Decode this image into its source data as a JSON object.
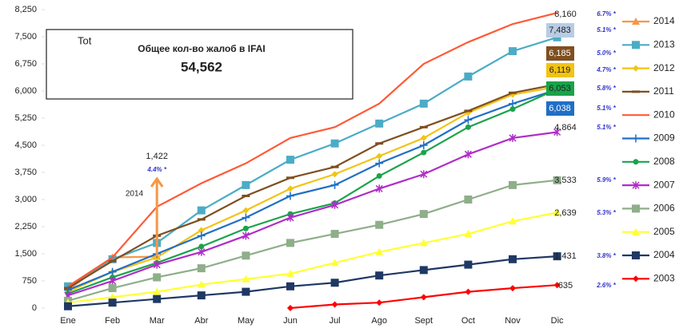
{
  "chart_data": {
    "type": "line",
    "categories": [
      "Ene",
      "Feb",
      "Mar",
      "Abr",
      "May",
      "Jun",
      "Jul",
      "Ago",
      "Sept",
      "Oct",
      "Nov",
      "Dic"
    ],
    "ylim": [
      0,
      8250
    ],
    "yticks": [
      0,
      750,
      {
        "value": 1500,
        "label": "1,500"
      },
      {
        "value": 2250,
        "label": "2,250"
      },
      {
        "value": 3000,
        "label": "3,000"
      },
      {
        "value": 3750,
        "label": "3,750"
      },
      {
        "value": 4500,
        "label": "4,500"
      },
      {
        "value": 5250,
        "label": "5,250"
      },
      {
        "value": 6000,
        "label": "6,000"
      },
      {
        "value": 6750,
        "label": "6,750"
      },
      {
        "value": 7500,
        "label": "7,500"
      },
      {
        "value": 8250,
        "label": "8,250"
      }
    ],
    "box": {
      "partial": "Tot",
      "title": "Общее кол-во жалоб в IFAI",
      "total": "54,562"
    },
    "annotation": "2014",
    "series": [
      {
        "name": "2014",
        "color": "#f79646",
        "marker": "triangle",
        "values": [
          500,
          1400,
          1422,
          null,
          null,
          null,
          null,
          null,
          null,
          null,
          null,
          null
        ],
        "value_labels": [
          null,
          null,
          "1,422",
          null,
          null,
          null,
          null,
          null,
          null,
          null,
          null,
          null
        ],
        "growth": "4.4% *"
      },
      {
        "name": "2013",
        "color": "#4bacc6",
        "marker": "square",
        "values": [
          600,
          1350,
          1800,
          2700,
          3400,
          4100,
          4550,
          5100,
          5650,
          6400,
          7100,
          7483
        ],
        "value_labels": [
          null,
          null,
          null,
          null,
          null,
          null,
          null,
          null,
          null,
          null,
          null,
          "7,483"
        ],
        "label_box": "#b8cce4",
        "growth": "5.1% *"
      },
      {
        "name": "2012",
        "color": "#f2c314",
        "marker": "diamond",
        "values": [
          450,
          1000,
          1400,
          2150,
          2700,
          3300,
          3700,
          4200,
          4700,
          5400,
          5900,
          6119
        ],
        "value_labels": [
          null,
          null,
          null,
          null,
          null,
          null,
          null,
          null,
          null,
          null,
          null,
          "6,119"
        ],
        "label_box": "#f2c314",
        "growth": "4.7% *"
      },
      {
        "name": "2011",
        "color": "#7f4f1f",
        "marker": "dash",
        "values": [
          550,
          1300,
          2000,
          2450,
          3100,
          3600,
          3900,
          4550,
          5000,
          5450,
          5950,
          6185
        ],
        "value_labels": [
          null,
          null,
          null,
          null,
          null,
          null,
          null,
          null,
          null,
          null,
          null,
          "6,185"
        ],
        "label_box": "#7f4f1f",
        "growth": "5.0% *"
      },
      {
        "name": "2010",
        "color": "#ff5a36",
        "marker": "none",
        "values": [
          600,
          1400,
          2800,
          3450,
          4000,
          4700,
          5000,
          5650,
          6750,
          7350,
          7850,
          8160
        ],
        "value_labels": [
          null,
          null,
          null,
          null,
          null,
          null,
          null,
          null,
          null,
          null,
          null,
          "8,160"
        ],
        "growth": "6.7% *"
      },
      {
        "name": "2009",
        "color": "#1f6fc6",
        "marker": "plus",
        "values": [
          500,
          1000,
          1500,
          2000,
          2500,
          3100,
          3400,
          4000,
          4500,
          5200,
          5650,
          6038
        ],
        "value_labels": [
          null,
          null,
          null,
          null,
          null,
          null,
          null,
          null,
          null,
          null,
          null,
          "6,038"
        ],
        "label_box": "#1f6fc6",
        "growth": "5.1% *"
      },
      {
        "name": "2008",
        "color": "#1aa34a",
        "marker": "circle",
        "values": [
          400,
          850,
          1250,
          1700,
          2200,
          2600,
          2900,
          3650,
          4300,
          5000,
          5500,
          6053
        ],
        "value_labels": [
          null,
          null,
          null,
          null,
          null,
          null,
          null,
          null,
          null,
          null,
          null,
          "6,053"
        ],
        "label_box": "#1aa34a",
        "growth": "5.8% *"
      },
      {
        "name": "2007",
        "color": "#b02cc9",
        "marker": "star",
        "values": [
          350,
          750,
          1200,
          1550,
          2000,
          2500,
          2850,
          3300,
          3700,
          4250,
          4700,
          4864
        ],
        "value_labels": [
          null,
          null,
          null,
          null,
          null,
          null,
          null,
          null,
          null,
          null,
          null,
          "4,864"
        ],
        "growth": "5.1% *"
      },
      {
        "name": "2006",
        "color": "#8fae8a",
        "marker": "square",
        "values": [
          200,
          550,
          850,
          1100,
          1450,
          1800,
          2050,
          2300,
          2600,
          3000,
          3400,
          3533
        ],
        "value_labels": [
          null,
          null,
          null,
          null,
          null,
          null,
          null,
          null,
          null,
          null,
          null,
          "3,533"
        ],
        "growth": "5.9% *"
      },
      {
        "name": "2005",
        "color": "#ffff33",
        "marker": "triangle",
        "values": [
          150,
          300,
          450,
          650,
          800,
          950,
          1250,
          1550,
          1800,
          2050,
          2400,
          2639
        ],
        "value_labels": [
          null,
          null,
          null,
          null,
          null,
          null,
          null,
          null,
          null,
          null,
          null,
          "2,639"
        ],
        "growth": "5.3% *"
      },
      {
        "name": "2004",
        "color": "#1f3864",
        "marker": "square",
        "values": [
          50,
          150,
          250,
          350,
          450,
          600,
          700,
          900,
          1050,
          1200,
          1350,
          1431
        ],
        "value_labels": [
          null,
          null,
          null,
          null,
          null,
          null,
          null,
          null,
          null,
          null,
          null,
          "1,431"
        ],
        "growth": "3.8% *"
      },
      {
        "name": "2003",
        "color": "#ff0000",
        "marker": "diamond",
        "values": [
          null,
          null,
          null,
          null,
          null,
          0,
          100,
          150,
          300,
          450,
          550,
          635
        ],
        "value_labels": [
          null,
          null,
          null,
          null,
          null,
          null,
          null,
          null,
          null,
          null,
          null,
          "635"
        ],
        "growth": "2.6% *"
      }
    ]
  }
}
